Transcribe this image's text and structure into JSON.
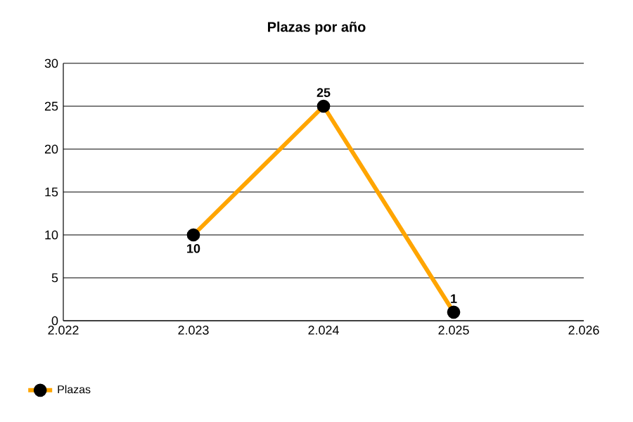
{
  "chart_data": {
    "type": "line",
    "title": "Plazas por año",
    "x": [
      2023,
      2024,
      2025
    ],
    "series": [
      {
        "name": "Plazas",
        "color": "#ffa500",
        "values": [
          10,
          25,
          1
        ]
      }
    ],
    "xlim": [
      2022,
      2026
    ],
    "xticks": [
      {
        "value": 2022,
        "label": "2.022"
      },
      {
        "value": 2023,
        "label": "2.023"
      },
      {
        "value": 2024,
        "label": "2.024"
      },
      {
        "value": 2025,
        "label": "2.025"
      },
      {
        "value": 2026,
        "label": "2.026"
      }
    ],
    "ylim": [
      0,
      30
    ],
    "yticks": [
      0,
      5,
      10,
      15,
      20,
      25,
      30
    ],
    "grid": "y",
    "legend": "bottom left",
    "marker": "circle",
    "line_style": "solid",
    "data_labels": true
  }
}
